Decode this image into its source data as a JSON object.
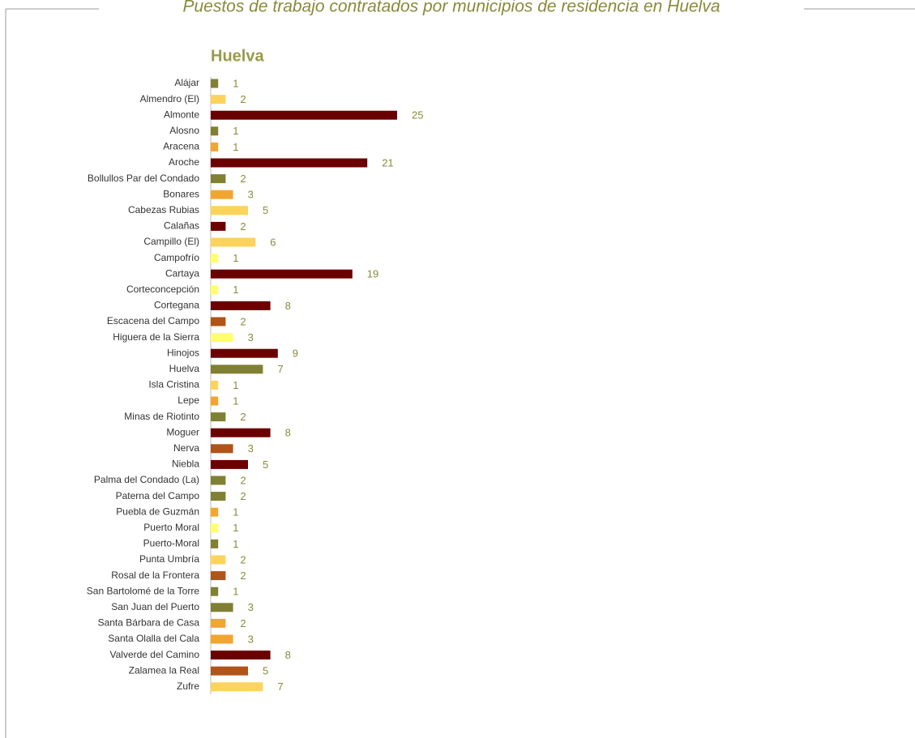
{
  "chart_data": {
    "type": "bar",
    "orientation": "horizontal",
    "title": "Puestos de trabajo contratados por municipios de residencia en Huelva",
    "subtitle": "Huelva",
    "categories": [
      "Alájar",
      "Almendro (El)",
      "Almonte",
      "Alosno",
      "Aracena",
      "Aroche",
      "Bollullos Par del Condado",
      "Bonares",
      "Cabezas Rubias",
      "Calañas",
      "Campillo (El)",
      "Campofrío",
      "Cartaya",
      "Corteconcepción",
      "Cortegana",
      "Escacena del Campo",
      "Higuera de la Sierra",
      "Hinojos",
      "Huelva",
      "Isla Cristina",
      "Lepe",
      "Minas de Riotinto",
      "Moguer",
      "Nerva",
      "Niebla",
      "Palma del Condado (La)",
      "Paterna del Campo",
      "Puebla de Guzmán",
      "Puerto Moral",
      "Puerto-Moral",
      "Punta Umbría",
      "Rosal de la Frontera",
      "San Bartolomé de la Torre",
      "San Juan del Puerto",
      "Santa Bárbara de Casa",
      "Santa Olalla del Cala",
      "Valverde del Camino",
      "Zalamea la Real",
      "Zufre"
    ],
    "values": [
      1,
      2,
      25,
      1,
      1,
      21,
      2,
      3,
      5,
      2,
      6,
      1,
      19,
      1,
      8,
      2,
      3,
      9,
      7,
      1,
      1,
      2,
      8,
      3,
      5,
      2,
      2,
      1,
      1,
      1,
      2,
      2,
      1,
      3,
      2,
      3,
      8,
      5,
      7
    ],
    "colors": [
      "#808034",
      "#fcd35c",
      "#6b0000",
      "#808034",
      "#f3a531",
      "#6b0000",
      "#808034",
      "#f3a531",
      "#fcd35c",
      "#6b0000",
      "#fcd35c",
      "#ffff70",
      "#6b0000",
      "#ffff70",
      "#6b0000",
      "#b05418",
      "#ffff70",
      "#6b0000",
      "#808034",
      "#fcd35c",
      "#f3a531",
      "#808034",
      "#6b0000",
      "#b05418",
      "#6b0000",
      "#808034",
      "#808034",
      "#f3a531",
      "#ffff70",
      "#808034",
      "#fcd35c",
      "#b05418",
      "#808034",
      "#808034",
      "#f3a531",
      "#f3a531",
      "#6b0000",
      "#b05418",
      "#fcd35c"
    ]
  }
}
